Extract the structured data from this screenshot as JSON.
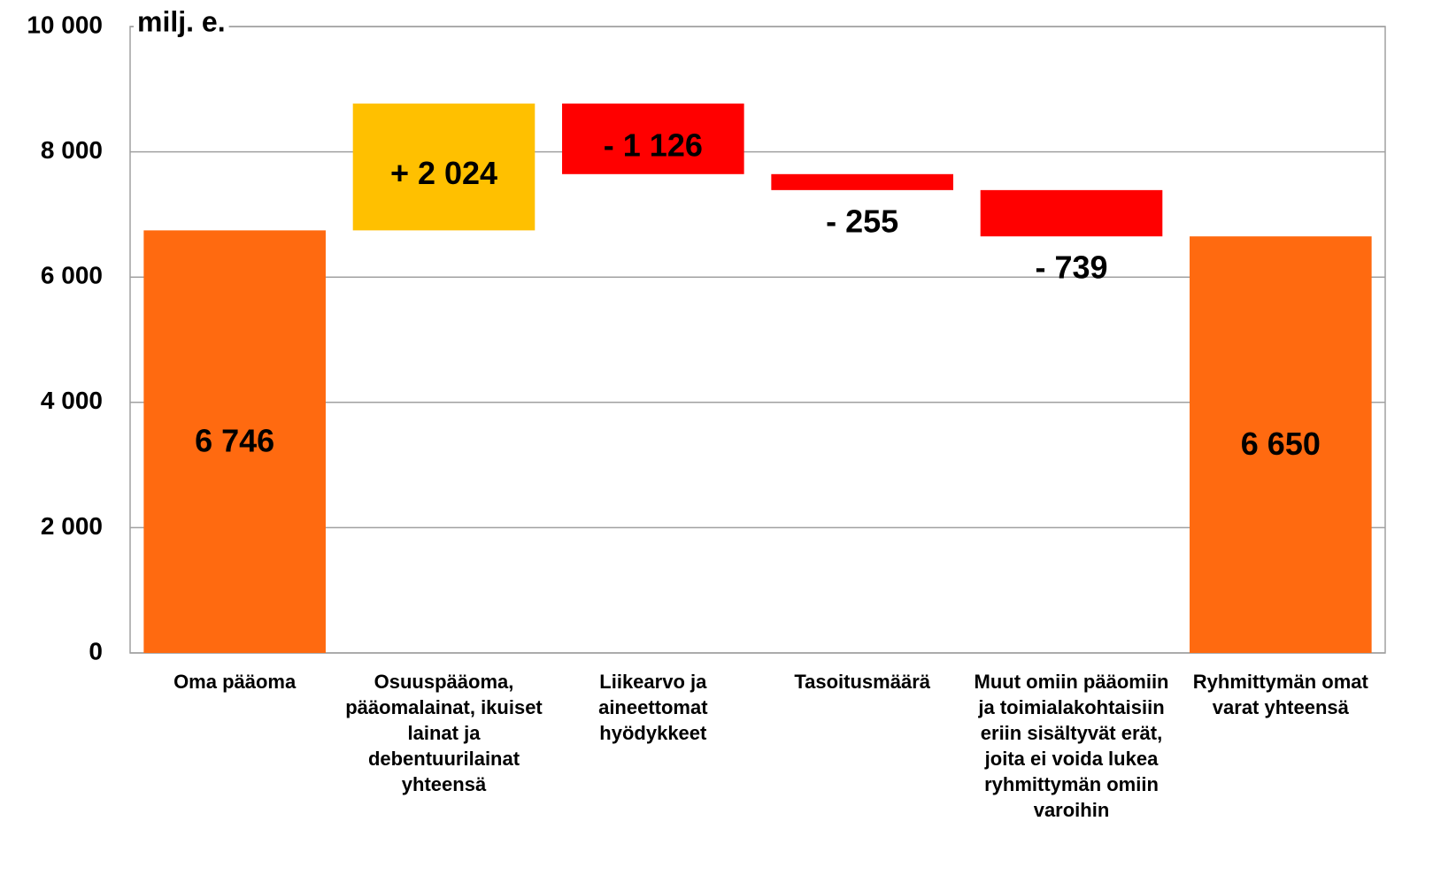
{
  "chart_data": {
    "type": "waterfall",
    "y_label": "milj. e.",
    "categories": [
      "Oma pääoma",
      "Osuuspääoma, pääomalainat, ikuiset lainat ja debentuurilainat yhteensä",
      "Liikearvo ja aineettomat hyödykkeet",
      "Tasoitusmäärä",
      "Muut omiin pääomiin ja toimialakohtaisiin eriin sisältyvät erät, joita ei voida lukea ryhmittymän omiin varoihin",
      "Ryhmittymän omat varat yhteensä"
    ],
    "values": [
      6746,
      2024,
      -1126,
      -255,
      -739,
      6650
    ],
    "value_labels": [
      "6 746",
      "+ 2 024",
      "- 1 126",
      "- 255",
      "- 739",
      "6 650"
    ],
    "measure": [
      "absolute",
      "relative",
      "relative",
      "relative",
      "relative",
      "absolute"
    ],
    "colors": [
      "#ff6a10",
      "#ffc000",
      "#ff0000",
      "#ff0000",
      "#ff0000",
      "#ff6a10"
    ],
    "ylim": [
      0,
      10000
    ],
    "yticks": [
      0,
      {
        "value": 2000,
        "label": "2 000"
      },
      {
        "value": 4000,
        "label": "4 000"
      },
      {
        "value": 6000,
        "label": "6 000"
      },
      {
        "value": 8000,
        "label": "8 000"
      },
      {
        "value": 10000,
        "label": "10 000"
      }
    ],
    "grid": true
  }
}
